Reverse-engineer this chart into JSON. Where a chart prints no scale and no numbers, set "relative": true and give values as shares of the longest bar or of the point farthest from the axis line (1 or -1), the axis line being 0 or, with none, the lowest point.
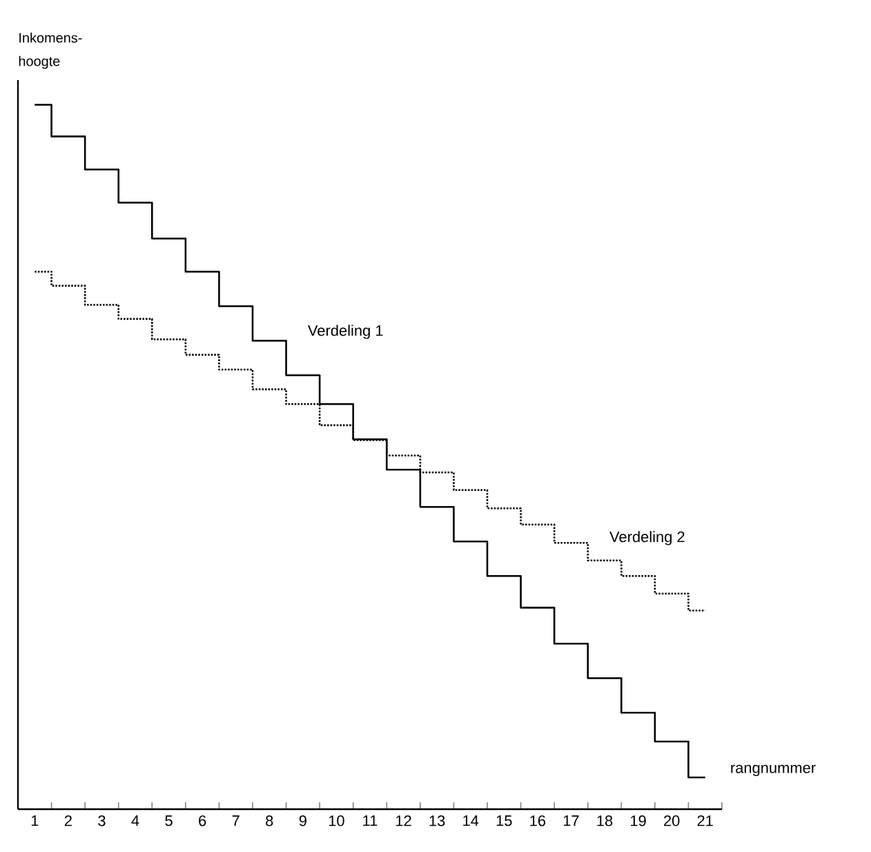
{
  "chart_data": {
    "type": "step",
    "relative": true,
    "xlabel": "rangnummer",
    "ylabel": "Inkomens-hoogte",
    "categories": [
      "1",
      "2",
      "3",
      "4",
      "5",
      "6",
      "7",
      "8",
      "9",
      "10",
      "11",
      "12",
      "13",
      "14",
      "15",
      "16",
      "17",
      "18",
      "19",
      "20",
      "21"
    ],
    "series": [
      {
        "name": "Verdeling 1",
        "color": "#000000",
        "line_style": "solid",
        "values": [
          1,
          0.955,
          0.908,
          0.861,
          0.81,
          0.763,
          0.714,
          0.665,
          0.616,
          0.575,
          0.525,
          0.482,
          0.429,
          0.38,
          0.331,
          0.286,
          0.235,
          0.186,
          0.137,
          0.096,
          0.045
        ]
      },
      {
        "name": "Verdeling 2",
        "color": "#000000",
        "line_style": "dotted",
        "values": [
          0.763,
          0.743,
          0.716,
          0.696,
          0.667,
          0.645,
          0.624,
          0.596,
          0.575,
          0.545,
          0.524,
          0.502,
          0.478,
          0.453,
          0.427,
          0.404,
          0.378,
          0.353,
          0.331,
          0.306,
          0.282
        ]
      }
    ],
    "legend": false
  }
}
